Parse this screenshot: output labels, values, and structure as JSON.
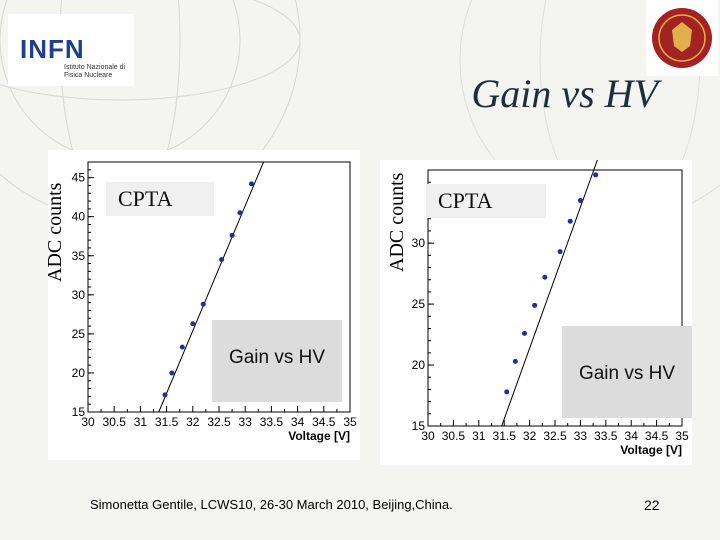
{
  "slide": {
    "title": "Gain vs HV",
    "footer": "Simonetta Gentile,  LCWS10, 26-30 March 2010, Beijing,China.",
    "page_number": "22",
    "logo_text": "INFN",
    "logo_subtitle": "Istituto Nazionale di Fisica Nucleare"
  },
  "chart_data": [
    {
      "type": "scatter",
      "title": "Gain vs HV",
      "annotation": "CPTA",
      "xlabel": "Voltage [V]",
      "ylabel": "ADC counts",
      "xlim": [
        30,
        35
      ],
      "ylim": [
        15,
        47
      ],
      "xticks": [
        "30",
        "30.5",
        "31",
        "31.5",
        "32",
        "32.5",
        "33",
        "33.5",
        "34",
        "34.5",
        "35"
      ],
      "yticks": [
        "15",
        "20",
        "25",
        "30",
        "35",
        "40",
        "45"
      ],
      "x": [
        31.47,
        31.6,
        31.8,
        32.0,
        32.2,
        32.55,
        32.75,
        32.9,
        33.12
      ],
      "y": [
        17.2,
        20.0,
        23.3,
        26.3,
        28.8,
        34.5,
        37.6,
        40.5,
        44.2
      ],
      "fit": [
        [
          31.35,
          15
        ],
        [
          33.35,
          47
        ]
      ]
    },
    {
      "type": "scatter",
      "title": "Gain vs HV",
      "annotation": "CPTA",
      "xlabel": "Voltage [V]",
      "ylabel": "ADC counts",
      "xlim": [
        30,
        35
      ],
      "ylim": [
        15,
        36
      ],
      "xticks": [
        "30",
        "30.5",
        "31",
        "31.5",
        "32",
        "32.5",
        "33",
        "33.5",
        "34",
        "34.5",
        "35"
      ],
      "yticks": [
        "15",
        "20",
        "25",
        "30"
      ],
      "x": [
        31.55,
        31.72,
        31.9,
        32.1,
        32.3,
        32.6,
        32.8,
        33.0,
        33.3
      ],
      "y": [
        17.8,
        20.3,
        22.6,
        24.9,
        27.2,
        29.3,
        31.8,
        33.5,
        35.6
      ],
      "fit": [
        [
          31.45,
          15
        ],
        [
          33.35,
          37
        ]
      ]
    }
  ]
}
